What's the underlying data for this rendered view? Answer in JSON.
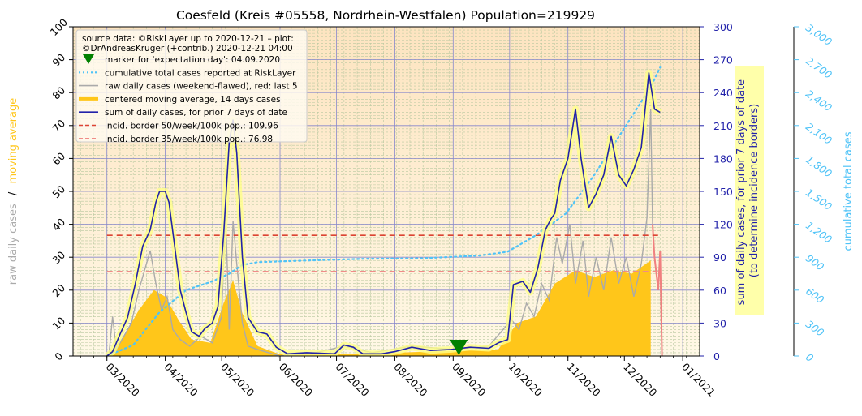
{
  "chart_data": {
    "type": "line",
    "title": "Coesfeld (Kreis #05558, Nordrhein-Westfalen) Population=219929",
    "ylabel_left_raw": "raw daily cases",
    "ylabel_left_sep": "/",
    "ylabel_left_ma": "moving average",
    "ylabel_right_1_line1": "sum of daily cases, for prior 7 days of date",
    "ylabel_right_1_line2": "(to determine incidence borders)",
    "ylabel_right_2": "cumulative total cases",
    "y_left_lim": [
      0,
      100
    ],
    "y_left_ticks": [
      "0",
      "10",
      "20",
      "30",
      "40",
      "50",
      "60",
      "70",
      "80",
      "90",
      "100"
    ],
    "y_right1_lim": [
      0,
      300
    ],
    "y_right1_ticks": [
      "0",
      "30",
      "60",
      "90",
      "120",
      "150",
      "180",
      "210",
      "240",
      "270",
      "300"
    ],
    "y_right2_lim": [
      0,
      3000
    ],
    "y_right2_ticks": [
      "0",
      "300",
      "600",
      "900",
      "1,200",
      "1,500",
      "1,800",
      "2,100",
      "2,400",
      "2,700",
      "3,000"
    ],
    "x_range": [
      "2020-02-12",
      "2021-01-10"
    ],
    "x_ticks": [
      {
        "date": "2020-03-01",
        "label": "03/2020"
      },
      {
        "date": "2020-04-01",
        "label": "04/2020"
      },
      {
        "date": "2020-05-01",
        "label": "05/2020"
      },
      {
        "date": "2020-06-01",
        "label": "06/2020"
      },
      {
        "date": "2020-07-01",
        "label": "07/2020"
      },
      {
        "date": "2020-08-01",
        "label": "08/2020"
      },
      {
        "date": "2020-09-01",
        "label": "09/2020"
      },
      {
        "date": "2020-10-01",
        "label": "10/2020"
      },
      {
        "date": "2020-11-01",
        "label": "11/2020"
      },
      {
        "date": "2020-12-01",
        "label": "12/2020"
      },
      {
        "date": "2021-01-01",
        "label": "01/2021"
      }
    ],
    "legend_position": "top-left",
    "legend": {
      "source_line1": "source data: ©RiskLayer up to 2020-12-21 – plot:",
      "source_line2": "©DrAndreasKruger (+contrib.) 2020-12-21 04:00",
      "items": [
        {
          "label": "marker for 'expectation day': 04.09.2020",
          "kind": "marker",
          "color": "#008000"
        },
        {
          "label": "cumulative total cases reported at RiskLayer",
          "kind": "dotted",
          "color": "#4fc3f7"
        },
        {
          "label": "raw daily cases (weekend-flawed), red: last 5",
          "kind": "line",
          "color": "#aaaaaa"
        },
        {
          "label": "centered moving average, 14 days cases",
          "kind": "thick",
          "color": "#ffc61a"
        },
        {
          "label": "sum of daily cases, for prior 7 days of date",
          "kind": "line",
          "color": "#2222aa"
        },
        {
          "label": "incid. border 50/week/100k pop.: 109.96",
          "kind": "dashed",
          "color": "#dd4433"
        },
        {
          "label": "incid. border 35/week/100k pop.: 76.98",
          "kind": "dashed",
          "color": "#f08c88"
        }
      ]
    },
    "expectation_day": "2020-09-04",
    "incidence_border_50": 109.96,
    "incidence_border_35": 76.98,
    "series": [
      {
        "name": "sum of daily cases, for prior 7 days of date",
        "axis": "right1",
        "color": "#2222aa",
        "points": [
          [
            "2020-03-01",
            0
          ],
          [
            "2020-03-04",
            4
          ],
          [
            "2020-03-08",
            20
          ],
          [
            "2020-03-12",
            35
          ],
          [
            "2020-03-16",
            65
          ],
          [
            "2020-03-20",
            100
          ],
          [
            "2020-03-24",
            115
          ],
          [
            "2020-03-27",
            140
          ],
          [
            "2020-03-29",
            150
          ],
          [
            "2020-04-01",
            150
          ],
          [
            "2020-04-03",
            140
          ],
          [
            "2020-04-06",
            100
          ],
          [
            "2020-04-09",
            60
          ],
          [
            "2020-04-12",
            40
          ],
          [
            "2020-04-15",
            22
          ],
          [
            "2020-04-19",
            18
          ],
          [
            "2020-04-22",
            25
          ],
          [
            "2020-04-26",
            30
          ],
          [
            "2020-04-29",
            45
          ],
          [
            "2020-05-02",
            110
          ],
          [
            "2020-05-05",
            195
          ],
          [
            "2020-05-07",
            215
          ],
          [
            "2020-05-09",
            185
          ],
          [
            "2020-05-12",
            90
          ],
          [
            "2020-05-15",
            35
          ],
          [
            "2020-05-20",
            22
          ],
          [
            "2020-05-25",
            20
          ],
          [
            "2020-05-30",
            8
          ],
          [
            "2020-06-05",
            2
          ],
          [
            "2020-06-15",
            3
          ],
          [
            "2020-06-30",
            2
          ],
          [
            "2020-07-05",
            10
          ],
          [
            "2020-07-10",
            8
          ],
          [
            "2020-07-15",
            2
          ],
          [
            "2020-07-25",
            2
          ],
          [
            "2020-08-01",
            4
          ],
          [
            "2020-08-10",
            8
          ],
          [
            "2020-08-20",
            5
          ],
          [
            "2020-08-31",
            6
          ],
          [
            "2020-09-10",
            8
          ],
          [
            "2020-09-20",
            7
          ],
          [
            "2020-09-25",
            12
          ],
          [
            "2020-09-30",
            15
          ],
          [
            "2020-10-03",
            65
          ],
          [
            "2020-10-08",
            68
          ],
          [
            "2020-10-12",
            58
          ],
          [
            "2020-10-16",
            80
          ],
          [
            "2020-10-20",
            115
          ],
          [
            "2020-10-23",
            125
          ],
          [
            "2020-10-25",
            130
          ],
          [
            "2020-10-28",
            160
          ],
          [
            "2020-11-01",
            180
          ],
          [
            "2020-11-05",
            225
          ],
          [
            "2020-11-08",
            180
          ],
          [
            "2020-11-12",
            135
          ],
          [
            "2020-11-16",
            148
          ],
          [
            "2020-11-20",
            165
          ],
          [
            "2020-11-24",
            200
          ],
          [
            "2020-11-28",
            165
          ],
          [
            "2020-12-02",
            155
          ],
          [
            "2020-12-06",
            170
          ],
          [
            "2020-12-10",
            190
          ],
          [
            "2020-12-14",
            258
          ],
          [
            "2020-12-17",
            225
          ],
          [
            "2020-12-20",
            222
          ]
        ]
      },
      {
        "name": "cumulative total cases reported at RiskLayer",
        "axis": "right2",
        "color": "#4fc3f7",
        "points": [
          [
            "2020-03-01",
            0
          ],
          [
            "2020-03-15",
            100
          ],
          [
            "2020-03-29",
            400
          ],
          [
            "2020-04-12",
            600
          ],
          [
            "2020-04-26",
            680
          ],
          [
            "2020-05-05",
            750
          ],
          [
            "2020-05-12",
            830
          ],
          [
            "2020-05-20",
            855
          ],
          [
            "2020-06-15",
            870
          ],
          [
            "2020-07-15",
            885
          ],
          [
            "2020-08-15",
            890
          ],
          [
            "2020-09-15",
            915
          ],
          [
            "2020-09-30",
            950
          ],
          [
            "2020-10-15",
            1100
          ],
          [
            "2020-10-31",
            1300
          ],
          [
            "2020-11-15",
            1650
          ],
          [
            "2020-11-30",
            2050
          ],
          [
            "2020-12-15",
            2450
          ],
          [
            "2020-12-20",
            2630
          ]
        ]
      },
      {
        "name": "centered moving average, 14 days cases",
        "axis": "left",
        "color": "#ffc61a",
        "points": [
          [
            "2020-03-01",
            0
          ],
          [
            "2020-03-10",
            6
          ],
          [
            "2020-03-18",
            14
          ],
          [
            "2020-03-26",
            20
          ],
          [
            "2020-04-01",
            18
          ],
          [
            "2020-04-08",
            11
          ],
          [
            "2020-04-15",
            5
          ],
          [
            "2020-04-25",
            4
          ],
          [
            "2020-05-02",
            16
          ],
          [
            "2020-05-07",
            23
          ],
          [
            "2020-05-12",
            13
          ],
          [
            "2020-05-20",
            3
          ],
          [
            "2020-06-01",
            0.5
          ],
          [
            "2020-07-01",
            0.5
          ],
          [
            "2020-08-01",
            1
          ],
          [
            "2020-09-01",
            1.5
          ],
          [
            "2020-09-25",
            2
          ],
          [
            "2020-10-05",
            10
          ],
          [
            "2020-10-15",
            12
          ],
          [
            "2020-10-25",
            22
          ],
          [
            "2020-11-05",
            26
          ],
          [
            "2020-11-15",
            24
          ],
          [
            "2020-11-25",
            26
          ],
          [
            "2020-12-05",
            25
          ],
          [
            "2020-12-15",
            29
          ]
        ]
      },
      {
        "name": "raw daily cases (weekend-flawed), red: last 5",
        "axis": "left",
        "color": "#aaaaaa",
        "red_last": 5,
        "points": [
          [
            "2020-03-02",
            0
          ],
          [
            "2020-03-04",
            12
          ],
          [
            "2020-03-06",
            2
          ],
          [
            "2020-03-10",
            6
          ],
          [
            "2020-03-14",
            10
          ],
          [
            "2020-03-18",
            20
          ],
          [
            "2020-03-21",
            26
          ],
          [
            "2020-03-24",
            32
          ],
          [
            "2020-03-27",
            22
          ],
          [
            "2020-03-30",
            14
          ],
          [
            "2020-04-02",
            18
          ],
          [
            "2020-04-05",
            8
          ],
          [
            "2020-04-09",
            5
          ],
          [
            "2020-04-14",
            3
          ],
          [
            "2020-04-20",
            6
          ],
          [
            "2020-04-26",
            4
          ],
          [
            "2020-05-01",
            12
          ],
          [
            "2020-05-03",
            45
          ],
          [
            "2020-05-05",
            8
          ],
          [
            "2020-05-07",
            41
          ],
          [
            "2020-05-09",
            28
          ],
          [
            "2020-05-12",
            10
          ],
          [
            "2020-05-15",
            3
          ],
          [
            "2020-05-20",
            2
          ],
          [
            "2020-06-01",
            0
          ],
          [
            "2020-06-20",
            1
          ],
          [
            "2020-07-05",
            3
          ],
          [
            "2020-07-20",
            1
          ],
          [
            "2020-08-10",
            3
          ],
          [
            "2020-09-01",
            2
          ],
          [
            "2020-09-20",
            3
          ],
          [
            "2020-10-02",
            11
          ],
          [
            "2020-10-06",
            8
          ],
          [
            "2020-10-10",
            16
          ],
          [
            "2020-10-14",
            12
          ],
          [
            "2020-10-18",
            22
          ],
          [
            "2020-10-22",
            17
          ],
          [
            "2020-10-26",
            36
          ],
          [
            "2020-10-29",
            28
          ],
          [
            "2020-11-02",
            40
          ],
          [
            "2020-11-05",
            22
          ],
          [
            "2020-11-09",
            35
          ],
          [
            "2020-11-12",
            18
          ],
          [
            "2020-11-16",
            30
          ],
          [
            "2020-11-20",
            20
          ],
          [
            "2020-11-24",
            36
          ],
          [
            "2020-11-28",
            22
          ],
          [
            "2020-12-02",
            30
          ],
          [
            "2020-12-06",
            18
          ],
          [
            "2020-12-10",
            28
          ],
          [
            "2020-12-13",
            42
          ],
          [
            "2020-12-15",
            75
          ],
          [
            "2020-12-16",
            40
          ],
          [
            "2020-12-17",
            30
          ],
          [
            "2020-12-18",
            25
          ],
          [
            "2020-12-19",
            20
          ],
          [
            "2020-12-20",
            32
          ],
          [
            "2020-12-21",
            0
          ]
        ]
      }
    ]
  }
}
